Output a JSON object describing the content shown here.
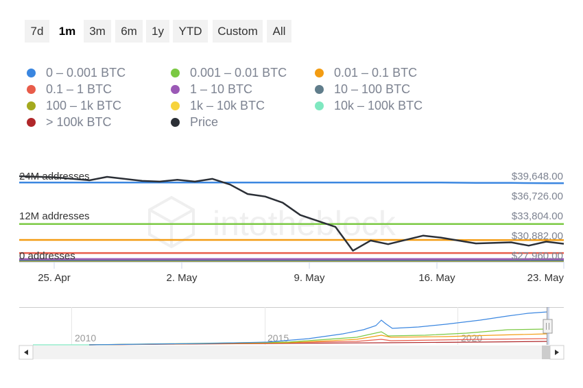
{
  "range_selector": {
    "buttons": [
      {
        "label": "7d",
        "selected": false
      },
      {
        "label": "1m",
        "selected": true
      },
      {
        "label": "3m",
        "selected": false
      },
      {
        "label": "6m",
        "selected": false
      },
      {
        "label": "1y",
        "selected": false
      },
      {
        "label": "YTD",
        "selected": false
      },
      {
        "label": "Custom",
        "selected": false
      },
      {
        "label": "All",
        "selected": false
      }
    ]
  },
  "watermark": "intotheblock",
  "navigator": {
    "years": [
      "2010",
      "2015",
      "2020"
    ],
    "scroll_left_icon": "triangle-left-icon",
    "scroll_right_icon": "triangle-right-icon",
    "handle_icon": "grip-icon"
  },
  "chart_data": {
    "type": "line",
    "title": "",
    "x_ticks": [
      "25. Apr",
      "2. May",
      "9. May",
      "16. May",
      "23. May"
    ],
    "x_range": [
      "2021-04-23",
      "2021-05-24"
    ],
    "left_axis": {
      "ticks": [
        "24M addresses",
        "12M addresses",
        "0 addresses"
      ],
      "range": [
        0,
        24000000
      ]
    },
    "right_axis": {
      "ticks": [
        "$39,648.00",
        "$36,726.00",
        "$33,804.00",
        "$30,882.00",
        "$27,960.00"
      ],
      "range": [
        27960,
        39648
      ]
    },
    "x": [
      "2021-04-23",
      "2021-04-25",
      "2021-04-27",
      "2021-04-29",
      "2021-05-01",
      "2021-05-03",
      "2021-05-05",
      "2021-05-07",
      "2021-05-09",
      "2021-05-11",
      "2021-05-13",
      "2021-05-15",
      "2021-05-17",
      "2021-05-19",
      "2021-05-21",
      "2021-05-23",
      "2021-05-24"
    ],
    "series": [
      {
        "name": "0 – 0.001 BTC",
        "color": "#3a86e0",
        "values": [
          22200000,
          22200000,
          22200000,
          22200000,
          22200000,
          22200000,
          22200000,
          22200000,
          22200000,
          22200000,
          22200000,
          22200000,
          22200000,
          22100000,
          22100000,
          22000000,
          22000000
        ]
      },
      {
        "name": "0.001 – 0.01 BTC",
        "color": "#7bc943",
        "values": [
          10500000,
          10500000,
          10500000,
          10500000,
          10500000,
          10500000,
          10500000,
          10500000,
          10500000,
          10500000,
          10500000,
          10500000,
          10500000,
          10500000,
          10500000,
          10500000,
          10500000
        ]
      },
      {
        "name": "0.01 – 0.1 BTC",
        "color": "#f39c12",
        "values": [
          6000000,
          6000000,
          6000000,
          6000000,
          6000000,
          6000000,
          6000000,
          6000000,
          6000000,
          6000000,
          6000000,
          6000000,
          6000000,
          5950000,
          5950000,
          5950000,
          5950000
        ]
      },
      {
        "name": "0.1 – 1 BTC",
        "color": "#e85c4a",
        "values": [
          2300000,
          2300000,
          2300000,
          2300000,
          2300000,
          2300000,
          2300000,
          2300000,
          2300000,
          2300000,
          2300000,
          2300000,
          2300000,
          2300000,
          2300000,
          2300000,
          2300000
        ]
      },
      {
        "name": "1 – 10 BTC",
        "color": "#9b59b6",
        "values": [
          600000,
          600000,
          600000,
          600000,
          600000,
          600000,
          600000,
          600000,
          600000,
          600000,
          600000,
          600000,
          600000,
          600000,
          600000,
          600000,
          600000
        ]
      },
      {
        "name": "10 – 100 BTC",
        "color": "#607d8b",
        "values": [
          200000,
          200000,
          200000,
          200000,
          200000,
          200000,
          200000,
          200000,
          200000,
          200000,
          200000,
          200000,
          200000,
          200000,
          200000,
          200000,
          200000
        ]
      },
      {
        "name": "100 – 1k BTC",
        "color": "#a4a91e",
        "values": [
          100000,
          100000,
          100000,
          100000,
          100000,
          100000,
          100000,
          100000,
          100000,
          100000,
          100000,
          100000,
          100000,
          100000,
          100000,
          100000,
          100000
        ]
      },
      {
        "name": "1k – 10k BTC",
        "color": "#f7d33c",
        "values": [
          50000,
          50000,
          50000,
          50000,
          50000,
          50000,
          50000,
          50000,
          50000,
          50000,
          50000,
          50000,
          50000,
          50000,
          50000,
          50000,
          50000
        ]
      },
      {
        "name": "10k – 100k BTC",
        "color": "#7fe8c0",
        "values": [
          20000,
          20000,
          20000,
          20000,
          20000,
          20000,
          20000,
          20000,
          20000,
          20000,
          20000,
          20000,
          20000,
          20000,
          20000,
          20000,
          20000
        ]
      },
      {
        "name": "> 100k BTC",
        "color": "#b0272a",
        "values": [
          10000,
          10000,
          10000,
          10000,
          10000,
          10000,
          10000,
          10000,
          10000,
          10000,
          10000,
          10000,
          10000,
          10000,
          10000,
          10000,
          10000
        ]
      }
    ],
    "price_series": {
      "name": "Price",
      "color": "#2b2f36",
      "x": [
        "2021-04-23",
        "2021-04-25",
        "2021-04-27",
        "2021-04-28",
        "2021-04-30",
        "2021-05-01",
        "2021-05-02",
        "2021-05-03",
        "2021-05-04",
        "2021-05-05",
        "2021-05-06",
        "2021-05-07",
        "2021-05-08",
        "2021-05-09",
        "2021-05-11",
        "2021-05-12",
        "2021-05-13",
        "2021-05-14",
        "2021-05-16",
        "2021-05-17",
        "2021-05-19",
        "2021-05-21",
        "2021-05-22",
        "2021-05-23",
        "2021-05-24"
      ],
      "values": [
        39650,
        39500,
        39080,
        39550,
        39000,
        38900,
        39150,
        38900,
        39280,
        38500,
        37200,
        36850,
        36000,
        34300,
        32680,
        29400,
        30800,
        30300,
        31480,
        31200,
        30400,
        30550,
        30100,
        30650,
        30350
      ]
    }
  }
}
